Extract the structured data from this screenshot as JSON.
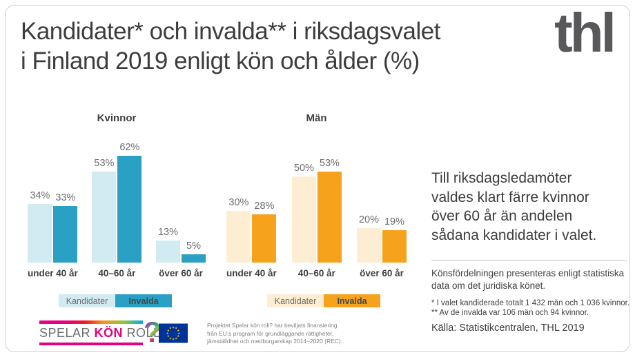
{
  "title": {
    "lines": [
      "Kandidater* och invalda** i riksdagsvalet",
      "i Finland 2019 enligt kön och ålder (%)"
    ]
  },
  "brand": {
    "logo_text": "thl"
  },
  "chart_data": {
    "type": "bar",
    "unit": "%",
    "categories": [
      "under 40 år",
      "40–60 år",
      "över 60 år"
    ],
    "ylim": [
      0,
      70
    ],
    "grid": false,
    "legend_position": "below-each-group",
    "groups": [
      {
        "title": "Kvinnor",
        "series": [
          {
            "name": "Kandidater",
            "color": "#d2ebf3",
            "values": [
              34,
              53,
              13
            ]
          },
          {
            "name": "Invalda",
            "color": "#2aa0c4",
            "values": [
              33,
              62,
              5
            ]
          }
        ]
      },
      {
        "title": "Män",
        "series": [
          {
            "name": "Kandidater",
            "color": "#fdeed3",
            "values": [
              30,
              50,
              20
            ]
          },
          {
            "name": "Invalda",
            "color": "#f6a21c",
            "values": [
              28,
              53,
              19
            ]
          }
        ]
      }
    ]
  },
  "highlight": {
    "lines": [
      "Till riksdagsledamöter",
      "valdes klart färre kvinnor",
      "över 60 år än andelen",
      "sådana kandidater i valet."
    ]
  },
  "note": {
    "lines": [
      "Könsfördelningen presenteras enligt statistiska",
      "data om det juridiska könet."
    ]
  },
  "footnotes": {
    "lines": [
      "* I valet kandiderade totalt 1 432 män och 1 036 kvinnor.",
      "** Av de invalda var 106 män och 94 kvinnor."
    ]
  },
  "source": "Källa: Statistikcentralen, THL 2019",
  "skr_logo": {
    "part1": "SPELAR ",
    "part2": "KÖN",
    "part3": " ROLL",
    "question": "?"
  },
  "eu_funding": {
    "lines": [
      "Projektet Spelar kön roll? har beviljats finansiering",
      "från EU:s program för grundläggande rättigheter,",
      "jämställdhet och medborgarskap 2014–2020 (REC)."
    ]
  },
  "colors": {
    "teal": "#2aa0c4",
    "light_blue": "#d2ebf3",
    "orange": "#f6a21c",
    "cream": "#fdeed3",
    "magenta": "#e5007d",
    "eu_blue": "#003399",
    "eu_star": "#ffcc00",
    "text_dark": "#3f4041",
    "text_gray": "#6d6e70"
  }
}
